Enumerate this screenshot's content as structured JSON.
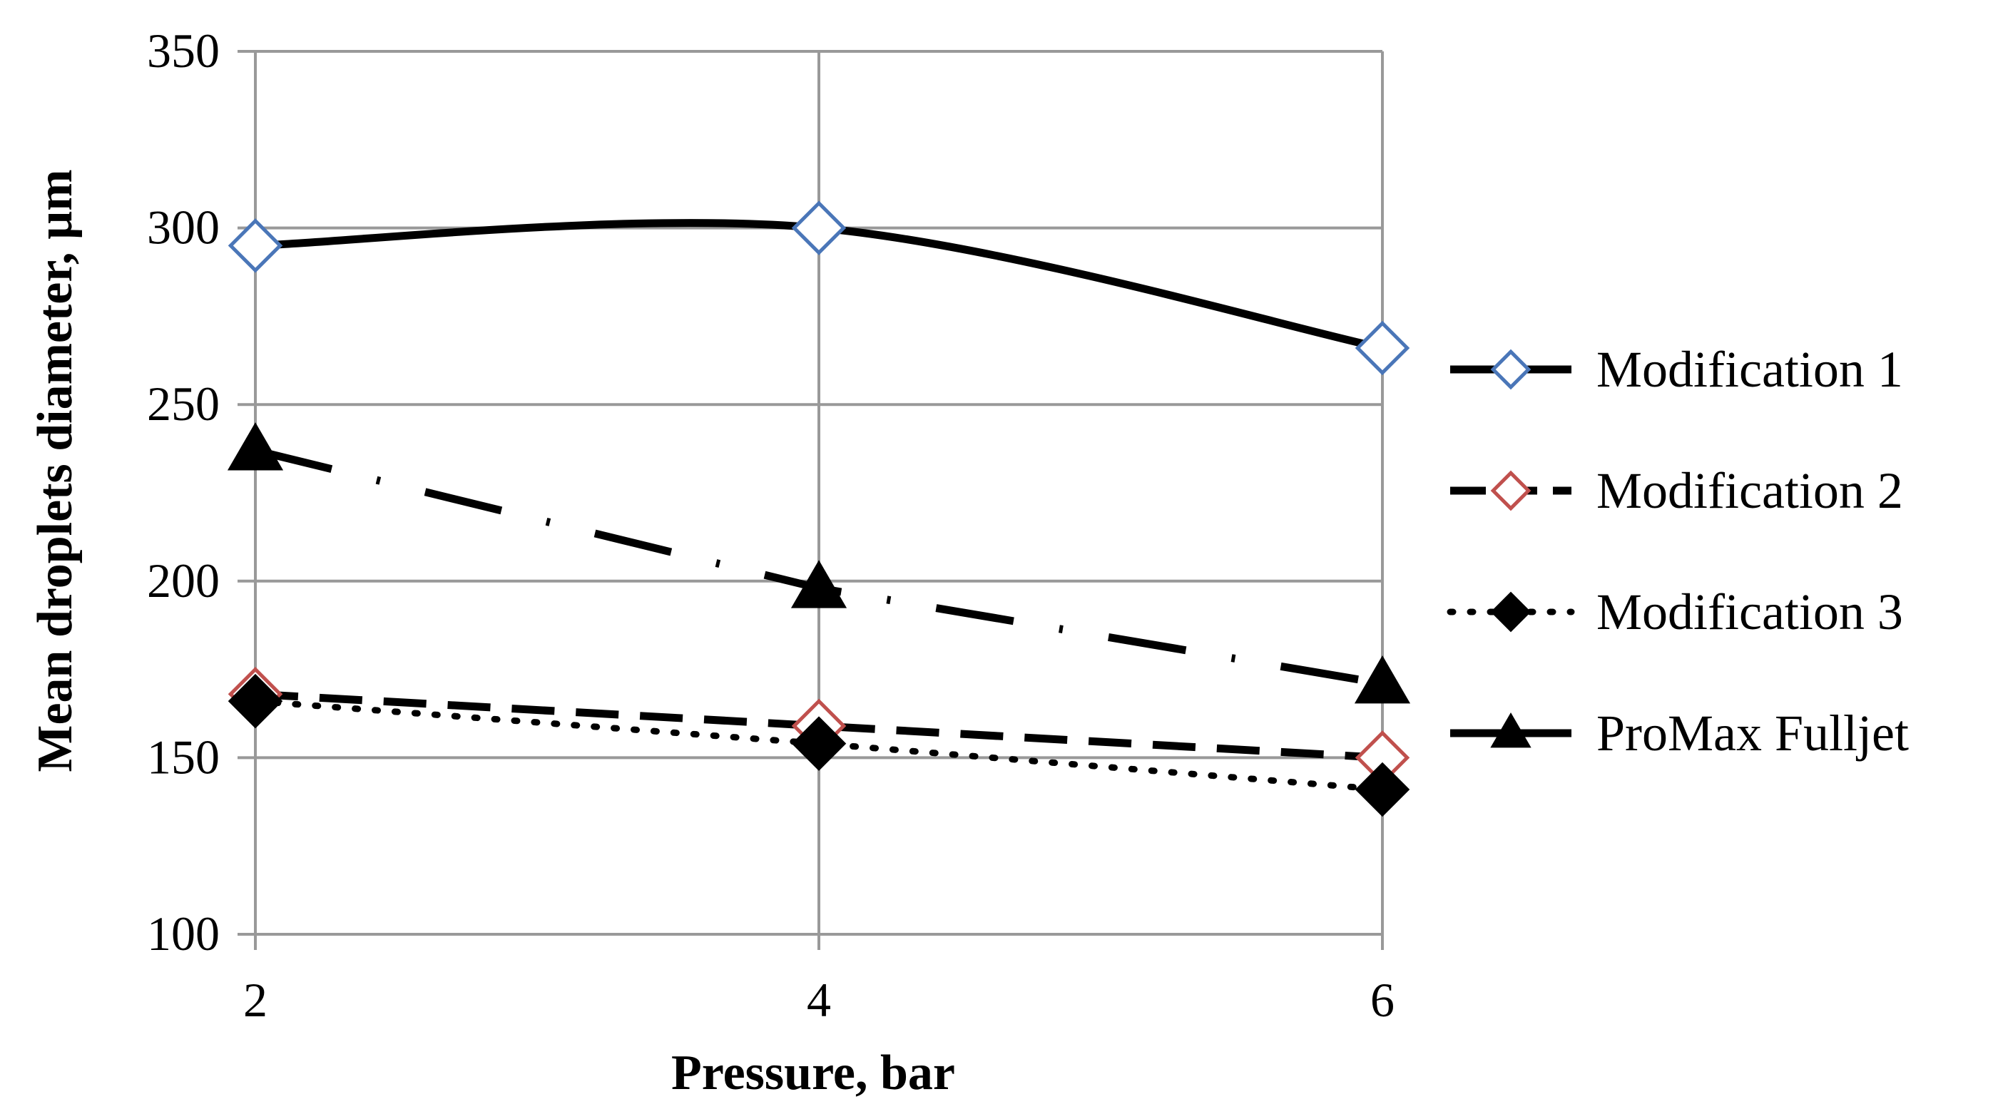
{
  "chart_data": {
    "type": "line",
    "title": "",
    "xlabel": "Pressure, bar",
    "ylabel": "Mean droplets diameter, µm",
    "x": [
      2,
      4,
      6
    ],
    "xticks": [
      "2",
      "4",
      "6"
    ],
    "ylim": [
      100,
      350
    ],
    "yticks": [
      "100",
      "150",
      "200",
      "250",
      "300",
      "350"
    ],
    "grid": "horizontal",
    "legend_position": "right",
    "series": [
      {
        "name": "Modification 1",
        "values": [
          295,
          300,
          266
        ],
        "line_style": "solid",
        "marker": "diamond",
        "marker_fill": "#ffffff",
        "marker_edge": "#4a76b8",
        "smooth": true
      },
      {
        "name": "Modification 2",
        "values": [
          168,
          159,
          150
        ],
        "line_style": "dashed",
        "marker": "diamond",
        "marker_fill": "#ffffff",
        "marker_edge": "#c0504d",
        "smooth": false
      },
      {
        "name": "Modification 3",
        "values": [
          166,
          154,
          141
        ],
        "line_style": "dotted",
        "marker": "diamond",
        "marker_fill": "#000000",
        "marker_edge": "#000000",
        "smooth": false
      },
      {
        "name": "ProMax Fulljet",
        "values": [
          237,
          198,
          171
        ],
        "line_style": "dash-dot",
        "marker": "triangle",
        "marker_fill": "#000000",
        "marker_edge": "#000000",
        "smooth": false
      }
    ]
  },
  "colors": {
    "grid": "#999999",
    "line": "#000000"
  }
}
